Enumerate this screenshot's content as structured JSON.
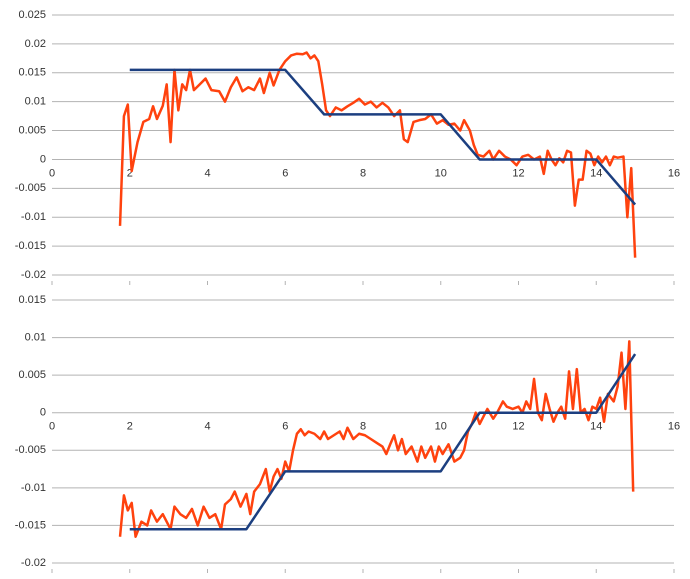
{
  "chart_data": [
    {
      "type": "line",
      "xlim": [
        0,
        16
      ],
      "xticks": [
        0,
        2,
        4,
        6,
        8,
        10,
        12,
        14,
        16
      ],
      "ylim": [
        -0.02,
        0.025
      ],
      "yticks": [
        0.025,
        0.02,
        0.015,
        0.01,
        0.005,
        0,
        -0.005,
        -0.01,
        -0.015,
        -0.02
      ],
      "grid": true,
      "series": [
        {
          "color": "#ff420e",
          "x": [
            1.75,
            1.85,
            1.95,
            2.05,
            2.2,
            2.35,
            2.5,
            2.6,
            2.7,
            2.85,
            2.95,
            3.05,
            3.15,
            3.25,
            3.35,
            3.45,
            3.55,
            3.65,
            3.8,
            3.95,
            4.1,
            4.3,
            4.45,
            4.6,
            4.75,
            4.9,
            5.05,
            5.2,
            5.35,
            5.45,
            5.6,
            5.7,
            5.85,
            6.0,
            6.15,
            6.3,
            6.45,
            6.55,
            6.65,
            6.75,
            6.85,
            6.95,
            7.05,
            7.15,
            7.3,
            7.45,
            7.6,
            7.75,
            7.9,
            8.05,
            8.2,
            8.35,
            8.5,
            8.65,
            8.8,
            8.95,
            9.05,
            9.15,
            9.3,
            9.45,
            9.6,
            9.75,
            9.9,
            10.05,
            10.2,
            10.35,
            10.5,
            10.6,
            10.75,
            10.85,
            10.95,
            11.1,
            11.25,
            11.35,
            11.5,
            11.65,
            11.8,
            11.95,
            12.1,
            12.25,
            12.4,
            12.55,
            12.65,
            12.75,
            12.85,
            12.95,
            13.05,
            13.15,
            13.25,
            13.35,
            13.45,
            13.55,
            13.65,
            13.75,
            13.85,
            13.95,
            14.05,
            14.15,
            14.25,
            14.35,
            14.45,
            14.55,
            14.7,
            14.8,
            14.9,
            15.0
          ],
          "values": [
            -0.0115,
            0.0075,
            0.0095,
            -0.002,
            0.003,
            0.0065,
            0.007,
            0.0092,
            0.007,
            0.0093,
            0.013,
            0.003,
            0.0155,
            0.0085,
            0.013,
            0.012,
            0.0155,
            0.012,
            0.013,
            0.014,
            0.012,
            0.0118,
            0.01,
            0.0125,
            0.0142,
            0.0118,
            0.0125,
            0.012,
            0.014,
            0.0115,
            0.015,
            0.0128,
            0.0155,
            0.017,
            0.018,
            0.0183,
            0.0182,
            0.0185,
            0.0175,
            0.018,
            0.017,
            0.013,
            0.0085,
            0.0075,
            0.009,
            0.0085,
            0.0092,
            0.0098,
            0.0105,
            0.0095,
            0.01,
            0.009,
            0.0098,
            0.009,
            0.0075,
            0.0085,
            0.0035,
            0.003,
            0.0065,
            0.0068,
            0.007,
            0.0078,
            0.0062,
            0.0068,
            0.006,
            0.0062,
            0.005,
            0.0068,
            0.005,
            0.0025,
            0.0008,
            0.0005,
            0.0015,
            0,
            0.0015,
            0.0005,
            0,
            -0.001,
            0.0005,
            0.0008,
            0,
            0.0005,
            -0.0025,
            0.0015,
            0,
            -0.001,
            0.0002,
            -0.0005,
            0.0015,
            0.0012,
            -0.008,
            -0.0035,
            -0.0035,
            0.0015,
            0.001,
            -0.001,
            0.0005,
            -0.0005,
            0.0005,
            -0.001,
            0.0005,
            0.0003,
            0.0005,
            -0.01,
            -0.0015,
            -0.017
          ]
        },
        {
          "color": "#1c3f80",
          "x": [
            2,
            6,
            7,
            10,
            11,
            14,
            15
          ],
          "values": [
            0.0155,
            0.0155,
            0.0078,
            0.0078,
            0,
            0,
            -0.0078
          ]
        }
      ]
    },
    {
      "type": "line",
      "xlim": [
        0,
        16
      ],
      "xticks": [
        0,
        2,
        4,
        6,
        8,
        10,
        12,
        14,
        16
      ],
      "ylim": [
        -0.02,
        0.015
      ],
      "yticks": [
        0.015,
        0.01,
        0.005,
        0,
        -0.005,
        -0.01,
        -0.015,
        -0.02
      ],
      "grid": true,
      "series": [
        {
          "color": "#ff420e",
          "x": [
            1.75,
            1.85,
            1.95,
            2.05,
            2.15,
            2.3,
            2.45,
            2.55,
            2.7,
            2.85,
            2.95,
            3.05,
            3.15,
            3.3,
            3.45,
            3.6,
            3.75,
            3.9,
            4.05,
            4.2,
            4.35,
            4.45,
            4.6,
            4.7,
            4.85,
            5.0,
            5.1,
            5.2,
            5.35,
            5.5,
            5.6,
            5.7,
            5.8,
            5.9,
            6.0,
            6.1,
            6.2,
            6.3,
            6.4,
            6.5,
            6.6,
            6.75,
            6.9,
            7.0,
            7.1,
            7.25,
            7.4,
            7.5,
            7.6,
            7.75,
            7.9,
            8.05,
            8.2,
            8.35,
            8.5,
            8.6,
            8.7,
            8.8,
            8.9,
            9.0,
            9.1,
            9.25,
            9.4,
            9.5,
            9.6,
            9.75,
            9.85,
            9.95,
            10.05,
            10.2,
            10.35,
            10.5,
            10.6,
            10.7,
            10.8,
            10.9,
            11.0,
            11.1,
            11.2,
            11.35,
            11.45,
            11.6,
            11.7,
            11.85,
            12.0,
            12.1,
            12.2,
            12.3,
            12.4,
            12.5,
            12.6,
            12.7,
            12.8,
            12.9,
            13.0,
            13.1,
            13.2,
            13.3,
            13.4,
            13.5,
            13.6,
            13.7,
            13.8,
            13.9,
            14.0,
            14.1,
            14.2,
            14.3,
            14.45,
            14.55,
            14.65,
            14.75,
            14.85,
            14.95
          ],
          "values": [
            -0.0165,
            -0.011,
            -0.013,
            -0.012,
            -0.0165,
            -0.0145,
            -0.015,
            -0.013,
            -0.0145,
            -0.0135,
            -0.0145,
            -0.0155,
            -0.0125,
            -0.0135,
            -0.014,
            -0.0128,
            -0.015,
            -0.0125,
            -0.014,
            -0.0135,
            -0.0155,
            -0.0122,
            -0.0115,
            -0.0105,
            -0.0125,
            -0.0108,
            -0.0135,
            -0.0105,
            -0.0095,
            -0.0075,
            -0.0105,
            -0.0085,
            -0.0075,
            -0.0088,
            -0.0065,
            -0.0078,
            -0.005,
            -0.0028,
            -0.0022,
            -0.003,
            -0.0025,
            -0.0028,
            -0.0035,
            -0.0025,
            -0.0035,
            -0.003,
            -0.0025,
            -0.0035,
            -0.002,
            -0.0035,
            -0.0028,
            -0.003,
            -0.0035,
            -0.004,
            -0.0045,
            -0.0055,
            -0.0042,
            -0.003,
            -0.005,
            -0.0035,
            -0.0055,
            -0.0045,
            -0.0065,
            -0.0045,
            -0.006,
            -0.0045,
            -0.0065,
            -0.0045,
            -0.0055,
            -0.0042,
            -0.0065,
            -0.006,
            -0.005,
            -0.0025,
            -0.0015,
            0,
            -0.0015,
            -0.0005,
            0.0005,
            -0.0008,
            0,
            0.0015,
            0.0008,
            0.0005,
            0.0008,
            0,
            0.0015,
            0.0005,
            0.0045,
            0,
            -0.001,
            0.0025,
            0.0005,
            -0.0012,
            0,
            0.0008,
            -0.0008,
            0.0055,
            0.0005,
            0.0058,
            0,
            0.0005,
            -0.001,
            0.0008,
            0.0005,
            0.002,
            -0.0012,
            0.0025,
            0.0015,
            0.0035,
            0.008,
            0.0005,
            0.0095,
            -0.0105
          ]
        },
        {
          "color": "#1c3f80",
          "x": [
            2,
            5,
            6,
            10,
            11,
            14,
            15
          ],
          "values": [
            -0.0155,
            -0.0155,
            -0.0078,
            -0.0078,
            0,
            0,
            0.0078
          ]
        }
      ]
    }
  ]
}
